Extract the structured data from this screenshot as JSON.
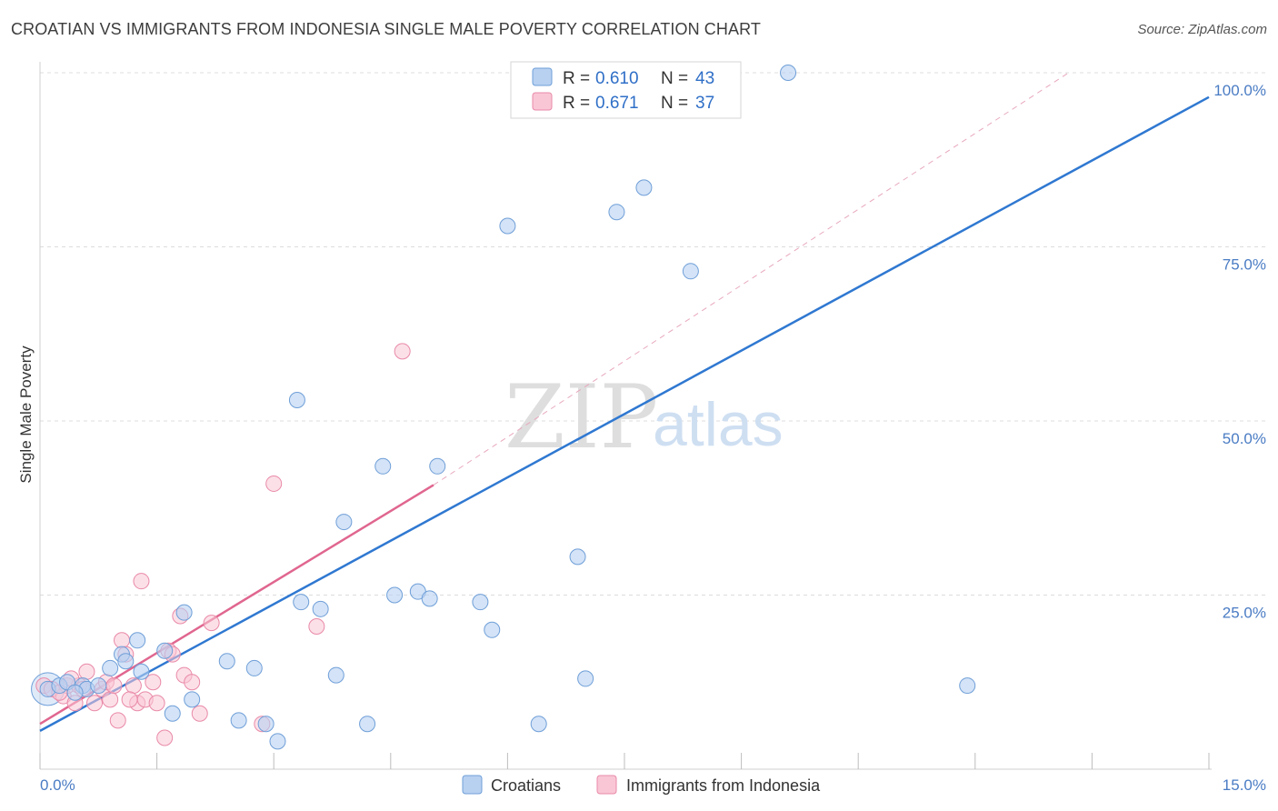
{
  "header": {
    "title": "CROATIAN VS IMMIGRANTS FROM INDONESIA SINGLE MALE POVERTY CORRELATION CHART",
    "source": "Source: ZipAtlas.com"
  },
  "watermark": {
    "zip": "ZIP",
    "atlas": "atlas"
  },
  "colors": {
    "blue_fill": "#b8d1f1",
    "blue_stroke": "#6f9fd8",
    "blue_line": "#2f78d1",
    "pink_fill": "#f9c6d6",
    "pink_stroke": "#e98aa8",
    "pink_line": "#e0668f",
    "grid": "#dcdcdc",
    "axis_text": "#4a7cc4"
  },
  "legend": {
    "items": [
      {
        "r_label": "R = ",
        "r_value": "0.610",
        "n_label": "N = ",
        "n_value": "43"
      },
      {
        "r_label": "R = ",
        "r_value": "0.671",
        "n_label": "N = ",
        "n_value": "37"
      }
    ]
  },
  "chart_data": {
    "type": "scatter",
    "title": "CROATIAN VS IMMIGRANTS FROM INDONESIA SINGLE MALE POVERTY CORRELATION CHART",
    "xlabel": "",
    "ylabel": "Single Male Poverty",
    "xlim": [
      0,
      15
    ],
    "ylim": [
      0,
      100
    ],
    "x_tick_labels": [
      "0.0%",
      "15.0%"
    ],
    "y_ticks": [
      25,
      50,
      75,
      100
    ],
    "y_tick_labels": [
      "25.0%",
      "50.0%",
      "75.0%",
      "100.0%"
    ],
    "grid": true,
    "legend_position": "top-center",
    "series": [
      {
        "name": "Croatians",
        "color": "#6f9fd8",
        "R": 0.61,
        "N": 43,
        "points": [
          [
            0.1,
            11.5
          ],
          [
            0.25,
            12
          ],
          [
            0.55,
            12
          ],
          [
            0.6,
            11.5
          ],
          [
            0.75,
            12
          ],
          [
            0.9,
            14.5
          ],
          [
            1.05,
            16.5
          ],
          [
            1.25,
            18.5
          ],
          [
            1.6,
            17
          ],
          [
            1.7,
            8
          ],
          [
            1.85,
            22.5
          ],
          [
            2.4,
            15.5
          ],
          [
            2.55,
            7
          ],
          [
            2.75,
            14.5
          ],
          [
            2.9,
            6.5
          ],
          [
            3.05,
            4
          ],
          [
            3.3,
            53
          ],
          [
            3.35,
            24
          ],
          [
            3.6,
            23
          ],
          [
            3.8,
            13.5
          ],
          [
            3.9,
            35.5
          ],
          [
            4.2,
            6.5
          ],
          [
            4.4,
            43.5
          ],
          [
            4.55,
            25
          ],
          [
            4.85,
            25.5
          ],
          [
            5.0,
            24.5
          ],
          [
            5.1,
            43.5
          ],
          [
            5.65,
            24
          ],
          [
            5.8,
            20
          ],
          [
            6.0,
            78
          ],
          [
            6.4,
            6.5
          ],
          [
            6.9,
            30.5
          ],
          [
            7.0,
            13
          ],
          [
            7.4,
            80
          ],
          [
            7.75,
            83.5
          ],
          [
            8.35,
            71.5
          ],
          [
            9.6,
            100
          ],
          [
            11.9,
            12
          ],
          [
            0.35,
            12.5
          ],
          [
            0.45,
            11
          ],
          [
            1.1,
            15.5
          ],
          [
            1.3,
            14
          ],
          [
            1.95,
            10
          ]
        ],
        "trend": {
          "x": [
            0,
            15
          ],
          "y": [
            5.5,
            96.5
          ]
        }
      },
      {
        "name": "Immigrants from Indonesia",
        "color": "#e98aa8",
        "R": 0.671,
        "N": 37,
        "points": [
          [
            0.05,
            12
          ],
          [
            0.15,
            11.5
          ],
          [
            0.3,
            10.5
          ],
          [
            0.35,
            12
          ],
          [
            0.45,
            9.5
          ],
          [
            0.5,
            12
          ],
          [
            0.55,
            11.5
          ],
          [
            0.6,
            14
          ],
          [
            0.7,
            9.5
          ],
          [
            0.8,
            11.5
          ],
          [
            0.85,
            12.5
          ],
          [
            0.9,
            10
          ],
          [
            0.95,
            12
          ],
          [
            1.0,
            7
          ],
          [
            1.05,
            18.5
          ],
          [
            1.1,
            16.5
          ],
          [
            1.2,
            12
          ],
          [
            1.25,
            9.5
          ],
          [
            1.3,
            27
          ],
          [
            1.35,
            10
          ],
          [
            1.45,
            12.5
          ],
          [
            1.5,
            9.5
          ],
          [
            1.6,
            4.5
          ],
          [
            1.65,
            17
          ],
          [
            1.7,
            16.5
          ],
          [
            1.8,
            22
          ],
          [
            1.85,
            13.5
          ],
          [
            1.95,
            12.5
          ],
          [
            2.05,
            8
          ],
          [
            2.2,
            21
          ],
          [
            2.85,
            6.5
          ],
          [
            3.0,
            41
          ],
          [
            3.55,
            20.5
          ],
          [
            4.65,
            60
          ],
          [
            1.15,
            10
          ],
          [
            0.4,
            13
          ],
          [
            0.25,
            11
          ]
        ],
        "trend": {
          "x": [
            0,
            5.05
          ],
          "y": [
            6.5,
            40.8
          ]
        },
        "trend_extended": {
          "x": [
            5.05,
            13.2
          ],
          "y": [
            40.8,
            100
          ]
        }
      }
    ]
  },
  "bottom_legend": {
    "items": [
      {
        "label": "Croatians"
      },
      {
        "label": "Immigrants from Indonesia"
      }
    ]
  }
}
